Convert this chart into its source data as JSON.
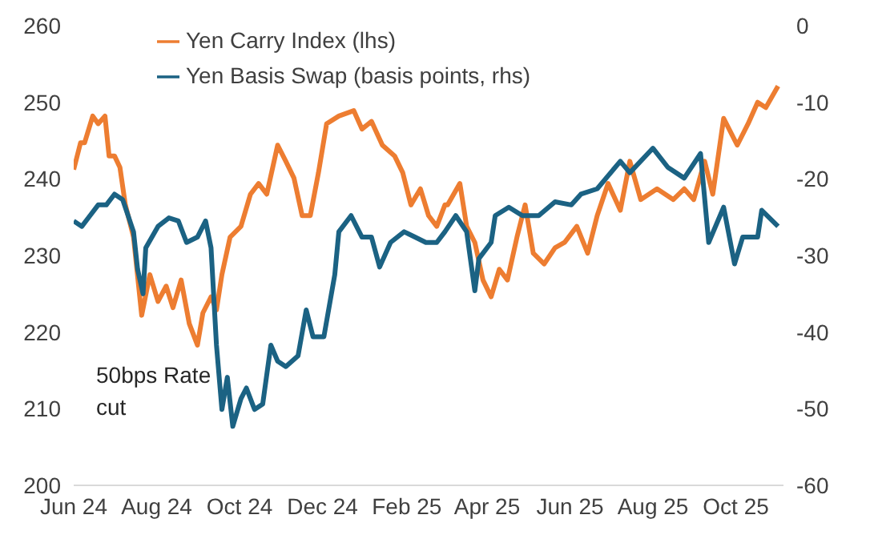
{
  "chart_data": {
    "type": "line",
    "ylabel": null,
    "legend": "top",
    "grid": false,
    "marker": "none",
    "line_style": "solid",
    "xlim": [
      "2024-06-01",
      "2025-11-05"
    ],
    "xticks": [
      {
        "value": "2024-06-01",
        "label": "Jun 24"
      },
      {
        "value": "2024-08-01",
        "label": "Aug 24"
      },
      {
        "value": "2024-10-01",
        "label": "Oct 24"
      },
      {
        "value": "2024-12-01",
        "label": "Dec 24"
      },
      {
        "value": "2025-02-01",
        "label": "Feb 25"
      },
      {
        "value": "2025-04-01",
        "label": "Apr 25"
      },
      {
        "value": "2025-06-01",
        "label": "Jun 25"
      },
      {
        "value": "2025-08-01",
        "label": "Aug 25"
      },
      {
        "value": "2025-10-01",
        "label": "Oct 25"
      }
    ],
    "ylim": [
      200,
      260
    ],
    "yticks": [
      200,
      210,
      220,
      230,
      240,
      250,
      260
    ],
    "y2lim": [
      -60,
      0
    ],
    "y2ticks": [
      -60,
      -50,
      -40,
      -30,
      -20,
      -10,
      0
    ],
    "annotations": [
      "50bps Rate cut"
    ],
    "series": [
      {
        "name": "Yen Carry Index (lhs)",
        "color": "#ed7d31",
        "x": [
          "2024-06-01",
          "2024-06-06",
          "2024-06-09",
          "2024-06-15",
          "2024-06-19",
          "2024-06-24",
          "2024-06-27",
          "2024-07-01",
          "2024-07-05",
          "2024-07-09",
          "2024-07-15",
          "2024-07-21",
          "2024-07-27",
          "2024-08-02",
          "2024-08-08",
          "2024-08-13",
          "2024-08-19",
          "2024-08-25",
          "2024-08-31",
          "2024-09-04",
          "2024-09-10",
          "2024-09-14",
          "2024-09-18",
          "2024-09-24",
          "2024-10-02",
          "2024-10-09",
          "2024-10-15",
          "2024-10-21",
          "2024-10-29",
          "2024-11-04",
          "2024-11-10",
          "2024-11-16",
          "2024-11-22",
          "2024-11-28",
          "2024-12-04",
          "2024-12-13",
          "2024-12-24",
          "2024-12-30",
          "2025-01-06",
          "2025-01-14",
          "2025-01-23",
          "2025-01-29",
          "2025-02-04",
          "2025-02-11",
          "2025-02-17",
          "2025-02-23",
          "2025-03-01",
          "2025-03-03",
          "2025-03-12",
          "2025-03-17",
          "2025-03-23",
          "2025-03-29",
          "2025-04-04",
          "2025-04-10",
          "2025-04-16",
          "2025-04-23",
          "2025-04-29",
          "2025-05-05",
          "2025-05-13",
          "2025-05-21",
          "2025-05-28",
          "2025-06-06",
          "2025-06-14",
          "2025-06-21",
          "2025-06-29",
          "2025-07-08",
          "2025-07-15",
          "2025-07-23",
          "2025-08-04",
          "2025-08-16",
          "2025-08-24",
          "2025-08-31",
          "2025-09-08",
          "2025-09-14",
          "2025-09-22",
          "2025-09-28",
          "2025-10-02",
          "2025-10-10",
          "2025-10-17",
          "2025-10-23",
          "2025-11-01"
        ],
        "values": [
          241.2,
          244.7,
          244.7,
          248.2,
          247.2,
          248.2,
          243,
          243,
          241.5,
          236.6,
          232.4,
          222.2,
          227.5,
          224,
          226,
          223.2,
          226.8,
          221.1,
          218.3,
          222.5,
          224.6,
          222.9,
          227.5,
          232.4,
          233.8,
          238,
          239.4,
          238,
          244.4,
          242.3,
          240.1,
          235.2,
          235.2,
          240.8,
          247.2,
          248.2,
          248.9,
          246.5,
          247.5,
          244.4,
          243,
          240.8,
          236.6,
          238.7,
          235.2,
          233.8,
          236.6,
          236.6,
          239.4,
          233.8,
          231.7,
          226.8,
          224.6,
          228.2,
          226.8,
          232.4,
          236.6,
          230.3,
          228.9,
          231,
          231.7,
          233.8,
          230.3,
          235.2,
          239.4,
          235.9,
          242.3,
          237.3,
          238.7,
          237.3,
          238.7,
          237.3,
          242.3,
          238,
          247.9,
          245.8,
          244.4,
          247.2,
          250,
          249.3,
          252.1
        ]
      },
      {
        "name": "Yen Basis Swap (basis points, rhs)",
        "color": "#1b6283",
        "axis": "y2",
        "x": [
          "2024-06-01",
          "2024-06-07",
          "2024-06-13",
          "2024-06-19",
          "2024-06-25",
          "2024-07-01",
          "2024-07-07",
          "2024-07-15",
          "2024-07-18",
          "2024-07-22",
          "2024-07-24",
          "2024-08-02",
          "2024-08-10",
          "2024-08-17",
          "2024-08-23",
          "2024-08-31",
          "2024-09-06",
          "2024-09-10",
          "2024-09-14",
          "2024-09-18",
          "2024-09-22",
          "2024-09-26",
          "2024-10-02",
          "2024-10-06",
          "2024-10-12",
          "2024-10-18",
          "2024-10-24",
          "2024-10-29",
          "2024-11-04",
          "2024-11-13",
          "2024-11-19",
          "2024-11-24",
          "2024-12-02",
          "2024-12-10",
          "2024-12-13",
          "2024-12-22",
          "2024-12-30",
          "2025-01-06",
          "2025-01-12",
          "2025-01-20",
          "2025-01-30",
          "2025-02-07",
          "2025-02-15",
          "2025-02-23",
          "2025-03-01",
          "2025-03-09",
          "2025-03-17",
          "2025-03-23",
          "2025-03-26",
          "2025-04-04",
          "2025-04-07",
          "2025-04-17",
          "2025-04-27",
          "2025-05-09",
          "2025-05-21",
          "2025-06-02",
          "2025-06-09",
          "2025-06-21",
          "2025-07-08",
          "2025-07-15",
          "2025-08-01",
          "2025-08-12",
          "2025-08-24",
          "2025-09-05",
          "2025-09-11",
          "2025-09-22",
          "2025-09-30",
          "2025-10-06",
          "2025-10-17",
          "2025-10-20",
          "2025-11-01"
        ],
        "values": [
          -25.5,
          -26.2,
          -24.8,
          -23.4,
          -23.4,
          -22,
          -22.7,
          -26.9,
          -31.8,
          -35,
          -29,
          -26.2,
          -25.1,
          -25.5,
          -28.3,
          -27.6,
          -25.5,
          -29,
          -41.7,
          -50.1,
          -45.9,
          -52.3,
          -48.7,
          -47.3,
          -50.1,
          -49.4,
          -41.7,
          -43.8,
          -44.5,
          -43.1,
          -37.1,
          -40.6,
          -40.6,
          -32.5,
          -26.9,
          -24.8,
          -27.6,
          -27.6,
          -31.5,
          -28.3,
          -26.9,
          -27.6,
          -28.3,
          -28.3,
          -26.9,
          -24.8,
          -26.9,
          -34.6,
          -30.4,
          -28.3,
          -24.8,
          -23.7,
          -24.8,
          -24.8,
          -23,
          -23.4,
          -22,
          -21.3,
          -17.7,
          -19.2,
          -16,
          -18.5,
          -19.9,
          -16.7,
          -28.3,
          -23.7,
          -31.1,
          -27.6,
          -27.6,
          -24.1,
          -26.2
        ]
      }
    ]
  }
}
